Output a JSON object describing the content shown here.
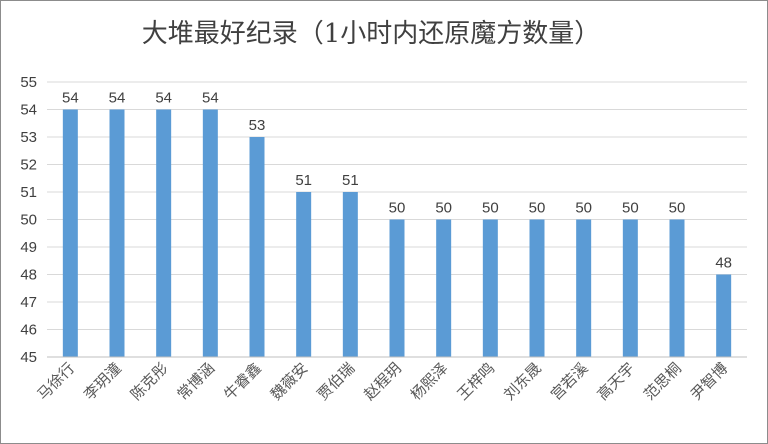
{
  "chart_data": {
    "type": "bar",
    "title": "大堆最好纪录（1小时内还原魔方数量）",
    "xlabel": "",
    "ylabel": "",
    "ylim": [
      45,
      55
    ],
    "yticks": [
      45,
      46,
      47,
      48,
      49,
      50,
      51,
      52,
      53,
      54,
      55
    ],
    "grid": true,
    "legend": "none",
    "bar_color": "#5b9bd5",
    "categories": [
      "马徐行",
      "李玥潼",
      "陈克彤",
      "常博涵",
      "牛睿鑫",
      "魏薇安",
      "贾伯瑞",
      "赵程玥",
      "杨熙泽",
      "王梓鸣",
      "刘东晟",
      "宫若溪",
      "高天宇",
      "范思桐",
      "尹智博"
    ],
    "values": [
      54,
      54,
      54,
      54,
      53,
      51,
      51,
      50,
      50,
      50,
      50,
      50,
      50,
      50,
      48
    ]
  }
}
